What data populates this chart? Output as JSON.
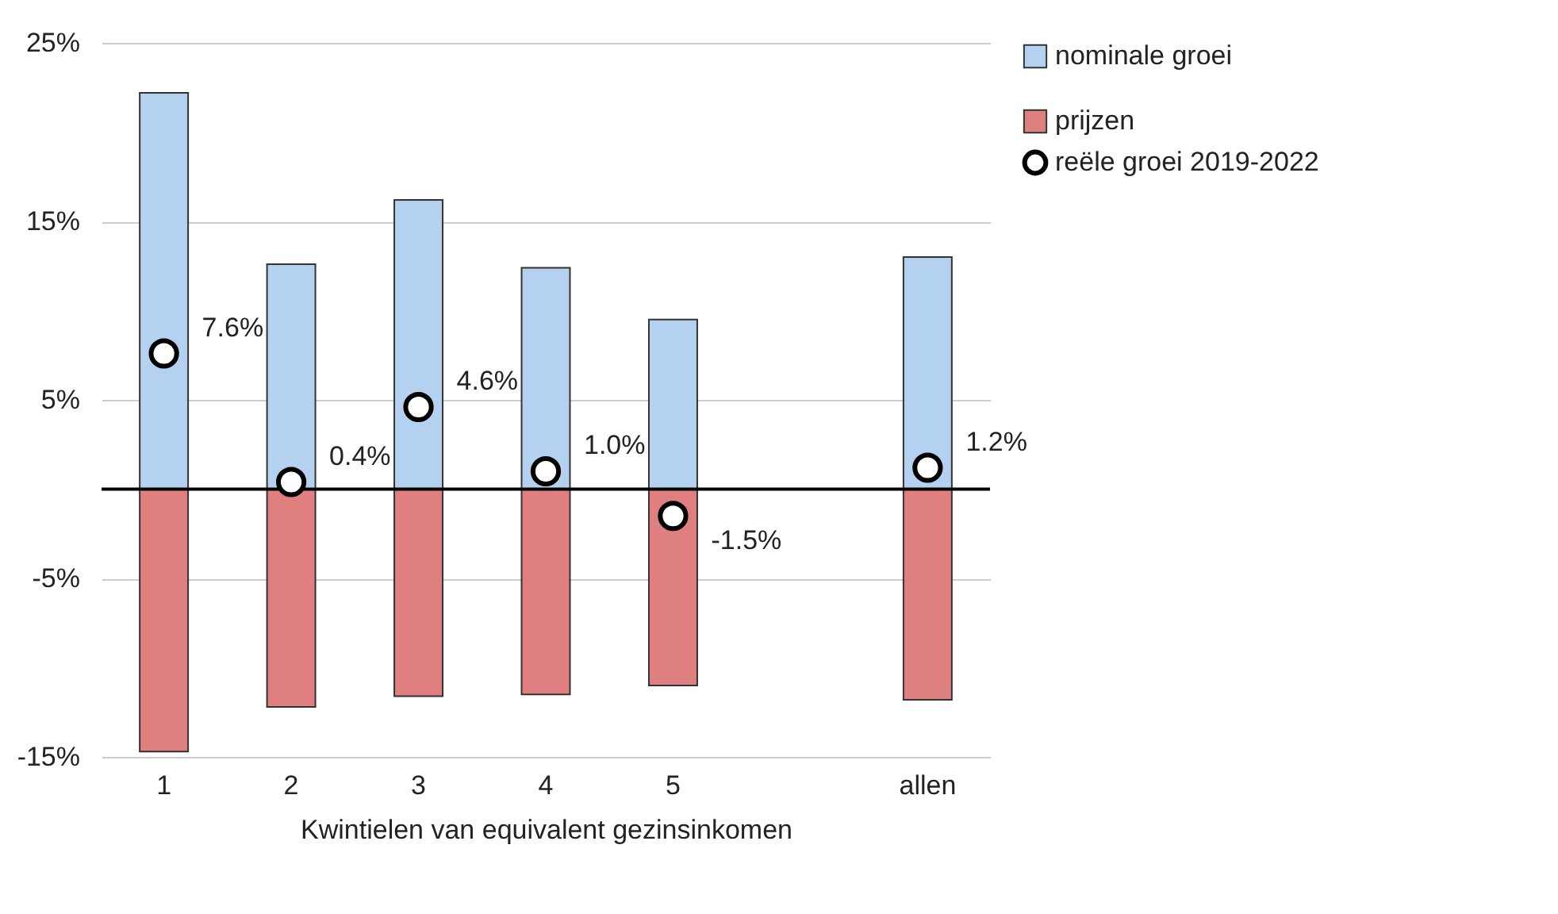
{
  "chart_data": {
    "type": "bar",
    "stacked": true,
    "xlabel": "Kwintielen van equivalent gezinsinkomen",
    "categories": [
      "1",
      "2",
      "3",
      "4",
      "5",
      null,
      "allen"
    ],
    "ylim": [
      -15,
      25
    ],
    "yticks": [
      {
        "value": -15,
        "label": "-15%"
      },
      {
        "value": -5,
        "label": "-5%"
      },
      {
        "value": 5,
        "label": "5%"
      },
      {
        "value": 15,
        "label": "15%"
      },
      {
        "value": 25,
        "label": "25%"
      }
    ],
    "grid": "y",
    "legend": "right",
    "ref_lines": [
      {
        "axis": "y",
        "value": 0,
        "color": "#000000"
      }
    ],
    "series": [
      {
        "name": "nominale groei",
        "type": "bar",
        "color": "#b4d1ef",
        "values": [
          22.2,
          12.6,
          16.2,
          12.4,
          9.5,
          null,
          13.0
        ]
      },
      {
        "name": "prijzen",
        "type": "bar",
        "color": "#e07f7f",
        "values": [
          -14.7,
          -12.2,
          -11.6,
          -11.5,
          -11.0,
          null,
          -11.8
        ]
      },
      {
        "name": "reële groei 2019-2022",
        "type": "scatter",
        "color": "#ffffff",
        "marker": "circle",
        "values": [
          7.6,
          0.4,
          4.6,
          1.0,
          -1.5,
          null,
          1.2
        ],
        "value_labels": [
          "7.6%",
          "0.4%",
          "4.6%",
          "1.0%",
          "-1.5%",
          null,
          "1.2%"
        ]
      }
    ]
  }
}
